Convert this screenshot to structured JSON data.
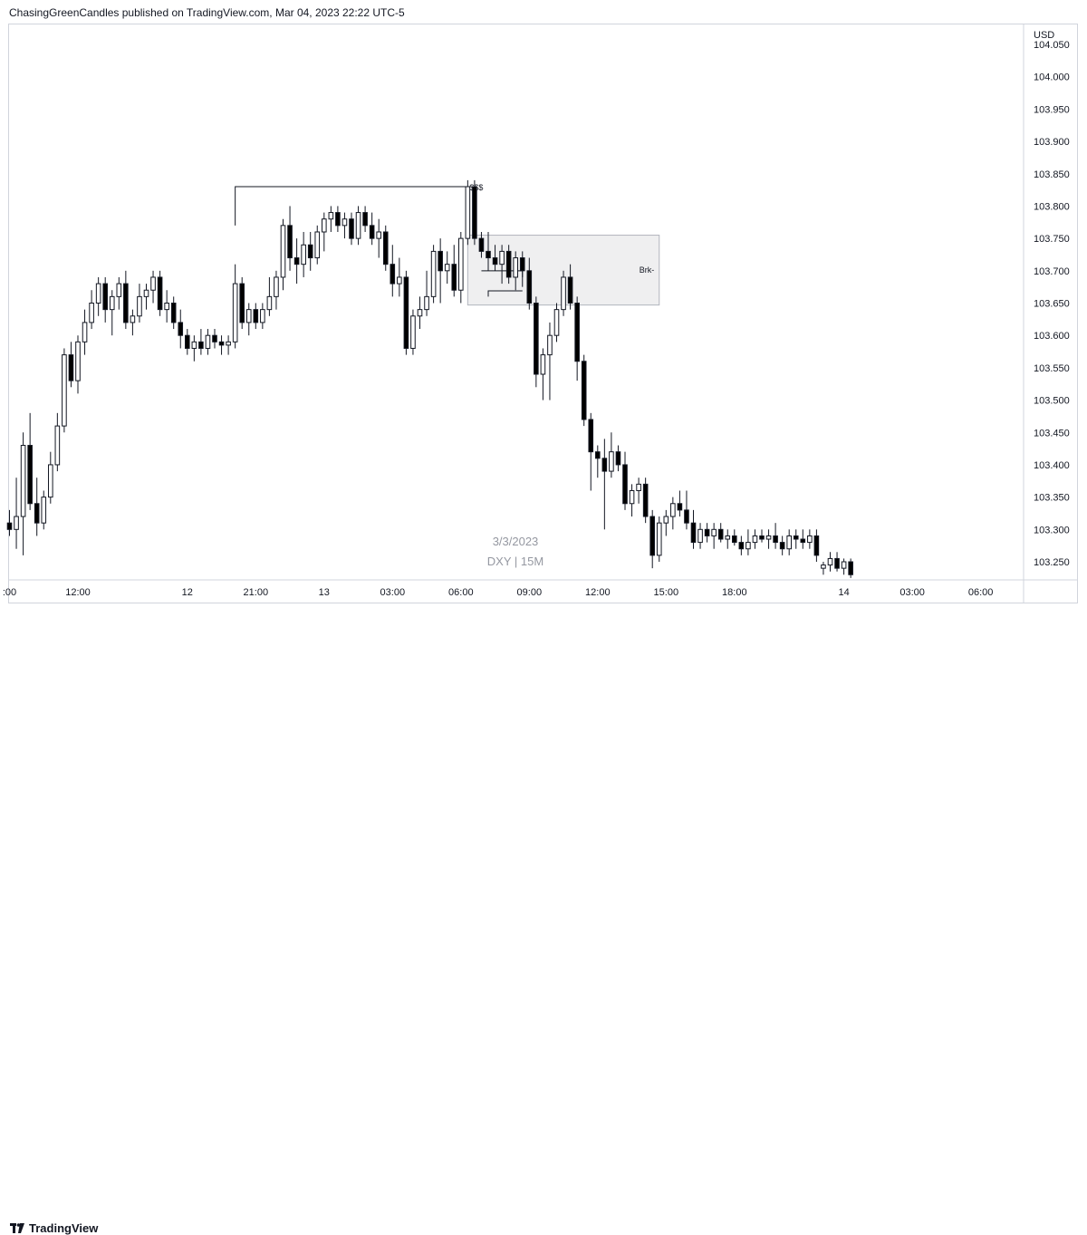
{
  "header": {
    "publisher_line": "ChasingGreenCandles published on TradingView.com, Mar 04, 2023 22:22 UTC-5"
  },
  "footer": {
    "brand": "TradingView"
  },
  "chart_data": {
    "type": "candlestick",
    "currency_label": "USD",
    "watermark": {
      "date": "3/3/2023",
      "symbol_interval": "DXY | 15M"
    },
    "y_ticks": [
      104.05,
      104.0,
      103.95,
      103.9,
      103.85,
      103.8,
      103.75,
      103.7,
      103.65,
      103.6,
      103.55,
      103.5,
      103.45,
      103.4,
      103.35,
      103.3,
      103.25
    ],
    "y_tick_labels": [
      "104.050",
      "104.000",
      "103.950",
      "103.900",
      "103.850",
      "103.800",
      "103.750",
      "103.700",
      "103.650",
      "103.600",
      "103.550",
      "103.500",
      "103.450",
      "103.400",
      "103.350",
      "103.300",
      "103.250"
    ],
    "x_tick_labels": [
      ":00",
      "12:00",
      "12",
      "21:00",
      "13",
      "03:00",
      "06:00",
      "09:00",
      "12:00",
      "15:00",
      "18:00",
      "14",
      "03:00",
      "06:00"
    ],
    "x_tick_bar_index": [
      0,
      10,
      26,
      36,
      46,
      56,
      66,
      76,
      86,
      96,
      106,
      122,
      132,
      142
    ],
    "candles": [
      [
        103.31,
        103.33,
        103.29,
        103.3
      ],
      [
        103.3,
        103.38,
        103.27,
        103.32
      ],
      [
        103.32,
        103.45,
        103.26,
        103.43
      ],
      [
        103.43,
        103.48,
        103.33,
        103.34
      ],
      [
        103.34,
        103.38,
        103.29,
        103.31
      ],
      [
        103.31,
        103.36,
        103.3,
        103.35
      ],
      [
        103.35,
        103.42,
        103.34,
        103.4
      ],
      [
        103.4,
        103.48,
        103.39,
        103.46
      ],
      [
        103.46,
        103.58,
        103.45,
        103.57
      ],
      [
        103.57,
        103.59,
        103.52,
        103.53
      ],
      [
        103.53,
        103.6,
        103.51,
        103.59
      ],
      [
        103.59,
        103.64,
        103.57,
        103.62
      ],
      [
        103.62,
        103.67,
        103.61,
        103.65
      ],
      [
        103.65,
        103.69,
        103.63,
        103.68
      ],
      [
        103.68,
        103.69,
        103.62,
        103.64
      ],
      [
        103.64,
        103.67,
        103.6,
        103.66
      ],
      [
        103.66,
        103.69,
        103.64,
        103.68
      ],
      [
        103.68,
        103.7,
        103.61,
        103.62
      ],
      [
        103.62,
        103.64,
        103.6,
        103.63
      ],
      [
        103.63,
        103.68,
        103.62,
        103.66
      ],
      [
        103.66,
        103.68,
        103.64,
        103.67
      ],
      [
        103.67,
        103.7,
        103.65,
        103.69
      ],
      [
        103.69,
        103.7,
        103.63,
        103.64
      ],
      [
        103.64,
        103.67,
        103.62,
        103.65
      ],
      [
        103.65,
        103.66,
        103.61,
        103.62
      ],
      [
        103.62,
        103.64,
        103.58,
        103.6
      ],
      [
        103.6,
        103.61,
        103.57,
        103.58
      ],
      [
        103.58,
        103.6,
        103.56,
        103.59
      ],
      [
        103.59,
        103.61,
        103.57,
        103.58
      ],
      [
        103.58,
        103.61,
        103.57,
        103.6
      ],
      [
        103.6,
        103.61,
        103.58,
        103.59
      ],
      [
        103.59,
        103.6,
        103.57,
        103.585
      ],
      [
        103.585,
        103.6,
        103.57,
        103.59
      ],
      [
        103.59,
        103.71,
        103.58,
        103.68
      ],
      [
        103.68,
        103.69,
        103.61,
        103.62
      ],
      [
        103.62,
        103.65,
        103.6,
        103.64
      ],
      [
        103.64,
        103.65,
        103.61,
        103.62
      ],
      [
        103.62,
        103.65,
        103.61,
        103.64
      ],
      [
        103.64,
        103.69,
        103.63,
        103.66
      ],
      [
        103.66,
        103.7,
        103.64,
        103.69
      ],
      [
        103.69,
        103.78,
        103.67,
        103.77
      ],
      [
        103.77,
        103.8,
        103.7,
        103.72
      ],
      [
        103.72,
        103.75,
        103.68,
        103.71
      ],
      [
        103.71,
        103.76,
        103.69,
        103.74
      ],
      [
        103.74,
        103.76,
        103.7,
        103.72
      ],
      [
        103.72,
        103.77,
        103.71,
        103.76
      ],
      [
        103.76,
        103.79,
        103.73,
        103.78
      ],
      [
        103.78,
        103.8,
        103.76,
        103.79
      ],
      [
        103.79,
        103.8,
        103.76,
        103.77
      ],
      [
        103.77,
        103.79,
        103.75,
        103.78
      ],
      [
        103.78,
        103.79,
        103.74,
        103.75
      ],
      [
        103.75,
        103.8,
        103.74,
        103.79
      ],
      [
        103.79,
        103.8,
        103.76,
        103.77
      ],
      [
        103.77,
        103.79,
        103.74,
        103.75
      ],
      [
        103.75,
        103.78,
        103.72,
        103.76
      ],
      [
        103.76,
        103.77,
        103.7,
        103.71
      ],
      [
        103.71,
        103.74,
        103.66,
        103.68
      ],
      [
        103.68,
        103.72,
        103.66,
        103.69
      ],
      [
        103.69,
        103.7,
        103.57,
        103.58
      ],
      [
        103.58,
        103.64,
        103.57,
        103.63
      ],
      [
        103.63,
        103.66,
        103.61,
        103.64
      ],
      [
        103.64,
        103.7,
        103.63,
        103.66
      ],
      [
        103.66,
        103.74,
        103.65,
        103.73
      ],
      [
        103.73,
        103.75,
        103.65,
        103.7
      ],
      [
        103.7,
        103.73,
        103.68,
        103.71
      ],
      [
        103.71,
        103.74,
        103.66,
        103.67
      ],
      [
        103.67,
        103.76,
        103.65,
        103.75
      ],
      [
        103.75,
        103.84,
        103.74,
        103.83
      ],
      [
        103.83,
        103.84,
        103.74,
        103.75
      ],
      [
        103.75,
        103.76,
        103.72,
        103.73
      ],
      [
        103.73,
        103.76,
        103.7,
        103.72
      ],
      [
        103.72,
        103.74,
        103.7,
        103.71
      ],
      [
        103.71,
        103.74,
        103.68,
        103.73
      ],
      [
        103.73,
        103.74,
        103.68,
        103.69
      ],
      [
        103.69,
        103.73,
        103.67,
        103.72
      ],
      [
        103.72,
        103.73,
        103.69,
        103.7
      ],
      [
        103.7,
        103.72,
        103.64,
        103.65
      ],
      [
        103.65,
        103.66,
        103.52,
        103.54
      ],
      [
        103.54,
        103.58,
        103.5,
        103.57
      ],
      [
        103.57,
        103.62,
        103.5,
        103.6
      ],
      [
        103.6,
        103.65,
        103.59,
        103.64
      ],
      [
        103.64,
        103.7,
        103.63,
        103.69
      ],
      [
        103.69,
        103.71,
        103.64,
        103.65
      ],
      [
        103.65,
        103.66,
        103.53,
        103.56
      ],
      [
        103.56,
        103.57,
        103.46,
        103.47
      ],
      [
        103.47,
        103.48,
        103.36,
        103.42
      ],
      [
        103.42,
        103.43,
        103.38,
        103.41
      ],
      [
        103.41,
        103.44,
        103.3,
        103.39
      ],
      [
        103.39,
        103.45,
        103.38,
        103.42
      ],
      [
        103.42,
        103.43,
        103.39,
        103.4
      ],
      [
        103.4,
        103.42,
        103.33,
        103.34
      ],
      [
        103.34,
        103.37,
        103.32,
        103.36
      ],
      [
        103.36,
        103.38,
        103.34,
        103.37
      ],
      [
        103.37,
        103.38,
        103.31,
        103.32
      ],
      [
        103.32,
        103.33,
        103.24,
        103.26
      ],
      [
        103.26,
        103.32,
        103.25,
        103.31
      ],
      [
        103.31,
        103.33,
        103.29,
        103.32
      ],
      [
        103.32,
        103.35,
        103.3,
        103.34
      ],
      [
        103.34,
        103.36,
        103.32,
        103.33
      ],
      [
        103.33,
        103.36,
        103.3,
        103.31
      ],
      [
        103.31,
        103.33,
        103.27,
        103.28
      ],
      [
        103.28,
        103.31,
        103.27,
        103.3
      ],
      [
        103.3,
        103.31,
        103.28,
        103.29
      ],
      [
        103.29,
        103.31,
        103.27,
        103.3
      ],
      [
        103.3,
        103.31,
        103.28,
        103.285
      ],
      [
        103.285,
        103.3,
        103.27,
        103.29
      ],
      [
        103.29,
        103.3,
        103.275,
        103.28
      ],
      [
        103.28,
        103.29,
        103.26,
        103.27
      ],
      [
        103.27,
        103.3,
        103.26,
        103.28
      ],
      [
        103.28,
        103.3,
        103.27,
        103.29
      ],
      [
        103.29,
        103.3,
        103.28,
        103.285
      ],
      [
        103.285,
        103.3,
        103.27,
        103.29
      ],
      [
        103.29,
        103.31,
        103.27,
        103.28
      ],
      [
        103.28,
        103.29,
        103.26,
        103.27
      ],
      [
        103.27,
        103.3,
        103.26,
        103.29
      ],
      [
        103.29,
        103.3,
        103.27,
        103.285
      ],
      [
        103.285,
        103.3,
        103.27,
        103.28
      ],
      [
        103.28,
        103.3,
        103.27,
        103.29
      ],
      [
        103.29,
        103.3,
        103.25,
        103.26
      ],
      [
        103.24,
        103.25,
        103.23,
        103.245
      ],
      [
        103.245,
        103.265,
        103.235,
        103.255
      ],
      [
        103.255,
        103.265,
        103.235,
        103.24
      ],
      [
        103.24,
        103.255,
        103.23,
        103.25
      ],
      [
        103.25,
        103.255,
        103.225,
        103.23
      ]
    ],
    "annotations": {
      "liquidity_line": {
        "label": "$$$",
        "price": 103.83,
        "from_bar": 33,
        "to_bar": 67
      },
      "zone_box": {
        "price_top": 103.755,
        "price_bottom": 103.647,
        "from_bar": 67,
        "to_bar": 95,
        "label": "Brk-"
      },
      "break_line_upper": {
        "price": 103.7,
        "from_bar": 69,
        "to_bar": 75
      },
      "break_line_lower": {
        "price": 103.669,
        "from_bar": 70,
        "to_bar": 75
      }
    }
  }
}
